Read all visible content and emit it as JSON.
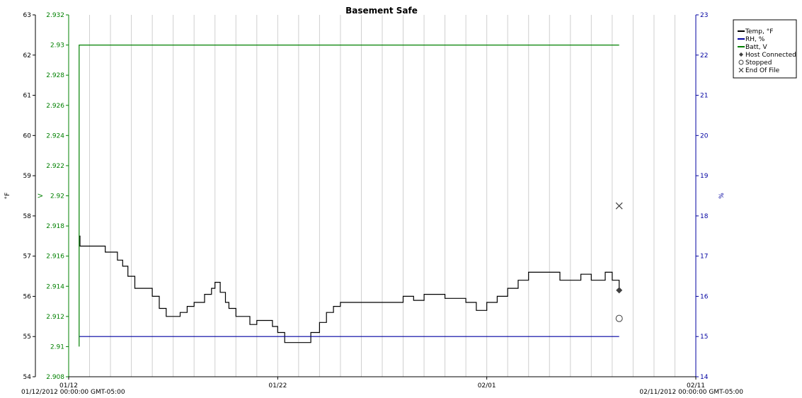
{
  "chart_data": {
    "type": "line",
    "title": "Basement Safe",
    "date_start_label": "01/12/2012 00:00:00 GMT-05:00",
    "date_end_label": "02/11/2012 00:00:00 GMT-05:00",
    "x_range": [
      "2012-01-12",
      "2012-02-11"
    ],
    "x_tick_labels": [
      {
        "date": "2012-01-12",
        "label": "01/12"
      },
      {
        "date": "2012-01-22",
        "label": "01/22"
      },
      {
        "date": "2012-02-01",
        "label": "02/01"
      },
      {
        "date": "2012-02-11",
        "label": "02/11"
      }
    ],
    "grid": true,
    "legend_position": "top-right",
    "axes": {
      "temp": {
        "label": "°F",
        "color": "#000000",
        "ylim": [
          54,
          63
        ],
        "ticks": [
          54,
          55,
          56,
          57,
          58,
          59,
          60,
          61,
          62,
          63
        ]
      },
      "batt": {
        "label": "V",
        "color": "#008000",
        "ylim": [
          2.908,
          2.932
        ],
        "ticks": [
          "2.908",
          "2.91",
          "2.912",
          "2.914",
          "2.916",
          "2.918",
          "2.92",
          "2.922",
          "2.924",
          "2.926",
          "2.928",
          "2.93",
          "2.932"
        ]
      },
      "rh": {
        "label": "%",
        "color": "#0000a0",
        "ylim": [
          14,
          23
        ],
        "ticks": [
          14,
          15,
          16,
          17,
          18,
          19,
          20,
          21,
          22,
          23
        ]
      }
    },
    "series": [
      {
        "name": "Temp, °F",
        "axis": "temp",
        "color": "#000000",
        "step": true,
        "x": [
          "2012-01-12 12:00",
          "2012-01-12 13:00",
          "2012-01-13 00:00",
          "2012-01-13 18:00",
          "2012-01-14 08:00",
          "2012-01-14 14:00",
          "2012-01-14 20:00",
          "2012-01-15 04:00",
          "2012-01-15 12:00",
          "2012-01-16 00:00",
          "2012-01-16 08:00",
          "2012-01-16 16:00",
          "2012-01-17 00:00",
          "2012-01-17 08:00",
          "2012-01-17 16:00",
          "2012-01-18 00:00",
          "2012-01-18 12:00",
          "2012-01-18 20:00",
          "2012-01-19 00:00",
          "2012-01-19 06:00",
          "2012-01-19 12:00",
          "2012-01-19 16:00",
          "2012-01-20 00:00",
          "2012-01-20 16:00",
          "2012-01-21 00:00",
          "2012-01-21 18:00",
          "2012-01-22 00:00",
          "2012-01-22 08:00",
          "2012-01-22 12:00",
          "2012-01-22 18:00",
          "2012-01-23 14:00",
          "2012-01-24 00:00",
          "2012-01-24 08:00",
          "2012-01-24 16:00",
          "2012-01-25 00:00",
          "2012-01-26 00:00",
          "2012-01-27 00:00",
          "2012-01-28 00:00",
          "2012-01-28 12:00",
          "2012-01-29 00:00",
          "2012-01-30 00:00",
          "2012-01-31 00:00",
          "2012-01-31 12:00",
          "2012-02-01 00:00",
          "2012-02-01 12:00",
          "2012-02-02 00:00",
          "2012-02-02 12:00",
          "2012-02-03 00:00",
          "2012-02-04 00:00",
          "2012-02-04 12:00",
          "2012-02-05 00:00",
          "2012-02-05 12:00",
          "2012-02-06 00:00",
          "2012-02-06 08:00",
          "2012-02-06 16:00",
          "2012-02-07 00:00",
          "2012-02-07 08:00"
        ],
        "y": [
          57.5,
          57.25,
          57.25,
          57.1,
          56.9,
          56.75,
          56.5,
          56.2,
          56.2,
          56.0,
          55.7,
          55.5,
          55.5,
          55.6,
          55.75,
          55.85,
          56.05,
          56.2,
          56.35,
          56.1,
          55.85,
          55.7,
          55.5,
          55.3,
          55.4,
          55.25,
          55.1,
          54.85,
          54.85,
          54.85,
          55.1,
          55.35,
          55.6,
          55.75,
          55.85,
          55.85,
          55.85,
          56.0,
          55.9,
          56.05,
          55.95,
          55.85,
          55.65,
          55.85,
          56.0,
          56.2,
          56.4,
          56.6,
          56.6,
          56.4,
          56.4,
          56.55,
          56.4,
          56.4,
          56.6,
          56.4,
          56.1
        ]
      },
      {
        "name": "RH, %",
        "axis": "rh",
        "color": "#0000a0",
        "x": [
          "2012-01-12 12:00",
          "2012-02-07 08:00"
        ],
        "y": [
          15.0,
          15.0
        ]
      },
      {
        "name": "Batt, V",
        "axis": "batt",
        "color": "#008000",
        "x": [
          "2012-01-12 12:00",
          "2012-01-12 12:00",
          "2012-02-07 08:00"
        ],
        "y": [
          2.91,
          2.93,
          2.93
        ]
      }
    ],
    "markers": [
      {
        "name": "Host Connected",
        "symbol": "diamond",
        "x": "2012-02-07 08:00",
        "y": 56.15,
        "axis": "temp"
      },
      {
        "name": "Stopped",
        "symbol": "circle",
        "x": "2012-02-07 08:00",
        "y": 55.45,
        "axis": "temp"
      },
      {
        "name": "End Of File",
        "symbol": "x",
        "x": "2012-02-07 08:00",
        "y": 58.25,
        "axis": "temp"
      }
    ],
    "legend": [
      {
        "name": "Temp, °F",
        "kind": "line",
        "color": "#000000"
      },
      {
        "name": "RH, %",
        "kind": "line",
        "color": "#0000a0"
      },
      {
        "name": "Batt, V",
        "kind": "line",
        "color": "#008000"
      },
      {
        "name": "Host Connected",
        "kind": "diamond",
        "color": "#404040"
      },
      {
        "name": "Stopped",
        "kind": "circle",
        "color": "#404040"
      },
      {
        "name": "End Of File",
        "kind": "x",
        "color": "#404040"
      }
    ]
  }
}
